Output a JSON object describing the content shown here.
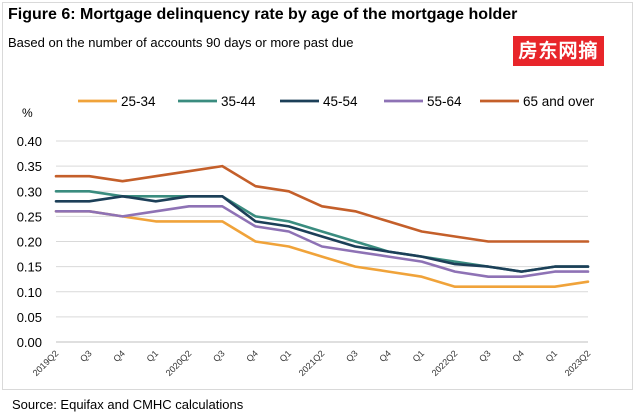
{
  "title": "Figure 6: Mortgage delinquency rate by age of the mortgage holder",
  "subtitle": "Based on the number of accounts 90 days or more past due",
  "watermark": "房东网摘",
  "source": "Source: Equifax and CMHC calculations",
  "chart_data": {
    "type": "line",
    "ylabel": "%",
    "ylim": [
      0,
      0.4
    ],
    "yticks": [
      "0.00",
      "0.05",
      "0.10",
      "0.15",
      "0.20",
      "0.25",
      "0.30",
      "0.35",
      "0.40"
    ],
    "categories": [
      "2019Q2",
      "Q3",
      "Q4",
      "Q1",
      "2020Q2",
      "Q3",
      "Q4",
      "Q1",
      "2021Q2",
      "Q3",
      "Q4",
      "Q1",
      "2022Q2",
      "Q3",
      "Q4",
      "Q1",
      "2023Q2"
    ],
    "grid": true,
    "legend_position": "top",
    "series": [
      {
        "name": "25-34",
        "color": "#f0a33a",
        "values": [
          0.26,
          0.26,
          0.25,
          0.24,
          0.24,
          0.24,
          0.2,
          0.19,
          0.17,
          0.15,
          0.14,
          0.13,
          0.11,
          0.11,
          0.11,
          0.11,
          0.12
        ]
      },
      {
        "name": "35-44",
        "color": "#3a8c7f",
        "values": [
          0.3,
          0.3,
          0.29,
          0.29,
          0.29,
          0.29,
          0.25,
          0.24,
          0.22,
          0.2,
          0.18,
          0.17,
          0.16,
          0.15,
          0.14,
          0.15,
          0.15
        ]
      },
      {
        "name": "45-54",
        "color": "#1c3f58",
        "values": [
          0.28,
          0.28,
          0.29,
          0.28,
          0.29,
          0.29,
          0.24,
          0.23,
          0.21,
          0.19,
          0.18,
          0.17,
          0.155,
          0.15,
          0.14,
          0.15,
          0.15
        ]
      },
      {
        "name": "55-64",
        "color": "#8e72b5",
        "values": [
          0.26,
          0.26,
          0.25,
          0.26,
          0.27,
          0.27,
          0.23,
          0.22,
          0.19,
          0.18,
          0.17,
          0.16,
          0.14,
          0.13,
          0.13,
          0.14,
          0.14
        ]
      },
      {
        "name": "65 and over",
        "color": "#c45f2a",
        "values": [
          0.33,
          0.33,
          0.32,
          0.33,
          0.34,
          0.35,
          0.31,
          0.3,
          0.27,
          0.26,
          0.24,
          0.22,
          0.21,
          0.2,
          0.2,
          0.2,
          0.2
        ]
      }
    ]
  }
}
